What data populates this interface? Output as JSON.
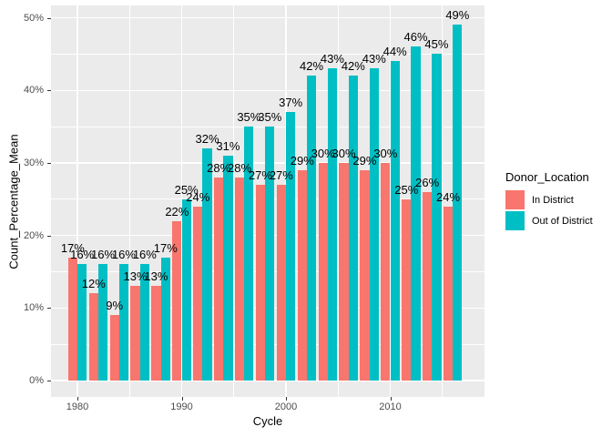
{
  "chart_data": {
    "type": "bar",
    "title": "",
    "xlabel": "Cycle",
    "ylabel": "Count_Percentage_Mean",
    "legend_title": "Donor_Location",
    "legend_position": "right",
    "categories": [
      1980,
      1982,
      1984,
      1986,
      1988,
      1990,
      1992,
      1994,
      1996,
      1998,
      2000,
      2002,
      2004,
      2006,
      2008,
      2010,
      2012,
      2014,
      2016
    ],
    "series": [
      {
        "name": "In District",
        "color": "#F8766D",
        "values": [
          17,
          12,
          9,
          13,
          13,
          22,
          24,
          28,
          28,
          27,
          27,
          29,
          30,
          30,
          29,
          30,
          25,
          26,
          24
        ]
      },
      {
        "name": "Out of District",
        "color": "#00BFC4",
        "values": [
          16,
          16,
          16,
          16,
          17,
          25,
          32,
          31,
          35,
          35,
          37,
          42,
          43,
          42,
          43,
          44,
          46,
          45,
          49
        ]
      }
    ],
    "value_suffix": "%",
    "x_ticks": [
      1980,
      1990,
      2000,
      2010
    ],
    "x_minor_ticks": [
      1985,
      1995,
      2005,
      2015
    ],
    "y_ticks": [
      0,
      10,
      20,
      30,
      40,
      50
    ],
    "y_minor_ticks": [
      5,
      15,
      25,
      35,
      45
    ],
    "ylim": [
      0,
      51.7
    ],
    "grid": true,
    "panel_bg": "#EBEBEB",
    "grid_color": "#FFFFFF",
    "tick_text_color": "#4D4D4D",
    "bar_label_color": "#000000"
  }
}
